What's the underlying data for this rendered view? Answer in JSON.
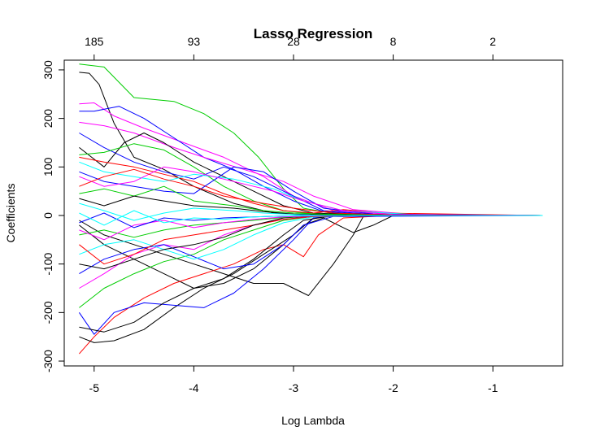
{
  "chart_data": {
    "type": "line",
    "title": "Lasso Regression",
    "xlabel": "Log Lambda",
    "ylabel": "Coefficients",
    "xlim": [
      -5.3,
      -0.3
    ],
    "ylim": [
      -310,
      320
    ],
    "x_ticks": [
      -5,
      -4,
      -3,
      -2,
      -1
    ],
    "x_tick_labels": [
      "-5",
      "-4",
      "-3",
      "-2",
      "-1"
    ],
    "y_ticks": [
      -300,
      -200,
      -100,
      0,
      100,
      200,
      300
    ],
    "y_tick_labels": [
      "-300",
      "-200",
      "-100",
      "0",
      "100",
      "200",
      "300"
    ],
    "top_axis": {
      "ticks": [
        -5,
        -4,
        -3,
        -2,
        -1
      ],
      "labels": [
        "185",
        "93",
        "28",
        "8",
        "2"
      ]
    },
    "series": [
      {
        "name": "path-green-1",
        "color": "#00cd00",
        "x": [
          -5.15,
          -4.9,
          -4.6,
          -4.2,
          -3.9,
          -3.6,
          -3.35,
          -3.1,
          -2.9,
          -2.6,
          -2.2,
          -1.5,
          -0.5
        ],
        "y": [
          312,
          306,
          243,
          235,
          210,
          170,
          120,
          55,
          15,
          4,
          2,
          1,
          0
        ]
      },
      {
        "name": "path-black-1",
        "color": "#000000",
        "x": [
          -5.15,
          -5.05,
          -4.95,
          -4.8,
          -4.6,
          -4.3,
          -4.0,
          -3.6,
          -3.2,
          -2.9,
          -2.5,
          -2.0,
          -0.5
        ],
        "y": [
          295,
          293,
          270,
          190,
          120,
          95,
          60,
          25,
          5,
          1,
          0,
          0,
          0
        ]
      },
      {
        "name": "path-magenta-1",
        "color": "#ff00ff",
        "x": [
          -5.15,
          -5.0,
          -4.8,
          -4.5,
          -4.1,
          -3.7,
          -3.3,
          -3.0,
          -2.6,
          -2.0,
          -0.5
        ],
        "y": [
          230,
          232,
          205,
          180,
          150,
          120,
          80,
          40,
          10,
          2,
          0
        ]
      },
      {
        "name": "path-blue-1",
        "color": "#0000ff",
        "x": [
          -5.15,
          -5.0,
          -4.75,
          -4.5,
          -4.2,
          -3.9,
          -3.6,
          -3.3,
          -3.0,
          -2.7,
          -2.2,
          -0.5
        ],
        "y": [
          215,
          215,
          225,
          200,
          160,
          120,
          95,
          60,
          30,
          8,
          1,
          0
        ]
      },
      {
        "name": "path-magenta-2",
        "color": "#ff00ff",
        "x": [
          -5.15,
          -4.9,
          -4.6,
          -4.2,
          -3.9,
          -3.5,
          -3.1,
          -2.8,
          -2.4,
          -1.8,
          -0.5
        ],
        "y": [
          192,
          185,
          170,
          140,
          120,
          95,
          70,
          40,
          12,
          2,
          0
        ]
      },
      {
        "name": "path-blue-2",
        "color": "#0000ff",
        "x": [
          -5.15,
          -4.9,
          -4.6,
          -4.3,
          -4.0,
          -3.7,
          -3.4,
          -3.0,
          -2.7,
          -2.2,
          -0.5
        ],
        "y": [
          170,
          140,
          110,
          90,
          75,
          100,
          80,
          40,
          10,
          2,
          0
        ]
      },
      {
        "name": "path-black-2",
        "color": "#000000",
        "x": [
          -5.15,
          -4.9,
          -4.7,
          -4.5,
          -4.3,
          -4.0,
          -3.7,
          -3.4,
          -3.1,
          -2.8,
          -2.3,
          -0.5
        ],
        "y": [
          140,
          100,
          150,
          170,
          150,
          110,
          80,
          50,
          20,
          5,
          1,
          0
        ]
      },
      {
        "name": "path-green-2",
        "color": "#00cd00",
        "x": [
          -5.15,
          -4.9,
          -4.6,
          -4.3,
          -4.0,
          -3.7,
          -3.4,
          -3.1,
          -2.8,
          -2.2,
          -0.5
        ],
        "y": [
          125,
          130,
          148,
          135,
          100,
          60,
          30,
          10,
          3,
          1,
          0
        ]
      },
      {
        "name": "path-red-1",
        "color": "#ff0000",
        "x": [
          -5.15,
          -4.9,
          -4.6,
          -4.3,
          -4.0,
          -3.7,
          -3.4,
          -3.1,
          -2.8,
          -2.5,
          -2.1,
          -0.5
        ],
        "y": [
          120,
          110,
          100,
          85,
          70,
          45,
          25,
          10,
          5,
          12,
          5,
          0
        ]
      },
      {
        "name": "path-cyan-1",
        "color": "#00ffff",
        "x": [
          -5.15,
          -4.9,
          -4.6,
          -4.3,
          -4.0,
          -3.6,
          -3.2,
          -2.9,
          -2.5,
          -1.8,
          -0.5
        ],
        "y": [
          110,
          90,
          80,
          70,
          85,
          75,
          55,
          30,
          10,
          2,
          0
        ]
      },
      {
        "name": "path-blue-3",
        "color": "#0000ff",
        "x": [
          -5.15,
          -4.9,
          -4.6,
          -4.3,
          -4.0,
          -3.6,
          -3.3,
          -3.0,
          -2.7,
          -2.2,
          -0.5
        ],
        "y": [
          90,
          70,
          60,
          50,
          45,
          100,
          90,
          50,
          15,
          3,
          0
        ]
      },
      {
        "name": "path-magenta-3",
        "color": "#ff00ff",
        "x": [
          -5.15,
          -4.9,
          -4.6,
          -4.3,
          -4.0,
          -3.6,
          -3.2,
          -2.9,
          -2.5,
          -2.0,
          -0.5
        ],
        "y": [
          80,
          60,
          70,
          100,
          90,
          70,
          50,
          30,
          10,
          2,
          0
        ]
      },
      {
        "name": "path-red-2",
        "color": "#ff0000",
        "x": [
          -5.15,
          -4.9,
          -4.6,
          -4.3,
          -4.0,
          -3.7,
          -3.3,
          -3.0,
          -2.6,
          -2.0,
          -0.5
        ],
        "y": [
          60,
          80,
          95,
          75,
          60,
          40,
          25,
          15,
          5,
          1,
          0
        ]
      },
      {
        "name": "path-green-3",
        "color": "#00cd00",
        "x": [
          -5.15,
          -4.9,
          -4.6,
          -4.3,
          -4.0,
          -3.6,
          -3.3,
          -3.0,
          -2.6,
          -2.0,
          -0.5
        ],
        "y": [
          45,
          55,
          40,
          60,
          30,
          20,
          10,
          5,
          2,
          0,
          0
        ]
      },
      {
        "name": "path-black-3",
        "color": "#000000",
        "x": [
          -5.15,
          -4.9,
          -4.6,
          -4.3,
          -4.0,
          -3.6,
          -3.3,
          -3.0,
          -2.7,
          -2.2,
          -0.5
        ],
        "y": [
          35,
          20,
          40,
          30,
          20,
          15,
          8,
          3,
          1,
          0,
          0
        ]
      },
      {
        "name": "path-cyan-2",
        "color": "#00ffff",
        "x": [
          -5.15,
          -4.9,
          -4.6,
          -4.3,
          -4.0,
          -3.6,
          -3.3,
          -3.0,
          -2.7,
          -2.2,
          -0.5
        ],
        "y": [
          25,
          10,
          -10,
          5,
          15,
          10,
          5,
          2,
          0,
          0,
          0
        ]
      },
      {
        "name": "path-black-4",
        "color": "#000000",
        "x": [
          -5.15,
          -4.9,
          -4.6,
          -4.3,
          -4.0,
          -3.7,
          -3.4,
          -3.1,
          -2.85,
          -2.6,
          -2.4,
          -2.3,
          -2.0,
          -0.5
        ],
        "y": [
          -10,
          -40,
          -60,
          -80,
          -100,
          -120,
          -140,
          -140,
          -165,
          -100,
          -40,
          -2,
          0,
          0
        ]
      },
      {
        "name": "path-black-5",
        "color": "#000000",
        "x": [
          -5.15,
          -4.9,
          -4.6,
          -4.3,
          -4.0,
          -3.7,
          -3.4,
          -3.1,
          -2.9,
          -2.7,
          -2.4,
          -2.2,
          -2.0,
          -0.5
        ],
        "y": [
          -20,
          -60,
          -90,
          -120,
          -150,
          -140,
          -110,
          -60,
          -20,
          -5,
          -35,
          -20,
          0,
          0
        ]
      },
      {
        "name": "path-red-3",
        "color": "#ff0000",
        "x": [
          -5.15,
          -5.0,
          -4.8,
          -4.5,
          -4.2,
          -3.9,
          -3.6,
          -3.3,
          -3.1,
          -2.9,
          -2.75,
          -2.5,
          -2.0,
          -0.5
        ],
        "y": [
          -285,
          -250,
          -210,
          -170,
          -140,
          -120,
          -100,
          -70,
          -60,
          -85,
          -40,
          -5,
          0,
          0
        ]
      },
      {
        "name": "path-black-6",
        "color": "#000000",
        "x": [
          -5.15,
          -5.0,
          -4.8,
          -4.5,
          -4.2,
          -3.9,
          -3.6,
          -3.3,
          -3.0,
          -2.8,
          -2.5,
          -0.5
        ],
        "y": [
          -250,
          -262,
          -258,
          -235,
          -190,
          -150,
          -120,
          -80,
          -40,
          -5,
          0,
          0
        ]
      },
      {
        "name": "path-blue-4",
        "color": "#0000ff",
        "x": [
          -5.15,
          -5.0,
          -4.8,
          -4.5,
          -4.2,
          -3.9,
          -3.6,
          -3.3,
          -3.0,
          -2.8,
          -2.5,
          -0.5
        ],
        "y": [
          -200,
          -245,
          -200,
          -180,
          -185,
          -190,
          -160,
          -110,
          -50,
          -5,
          0,
          0
        ]
      },
      {
        "name": "path-black-7",
        "color": "#000000",
        "x": [
          -5.15,
          -4.9,
          -4.6,
          -4.3,
          -4.0,
          -3.7,
          -3.4,
          -3.1,
          -2.9,
          -2.6,
          -0.5
        ],
        "y": [
          -230,
          -240,
          -220,
          -180,
          -150,
          -130,
          -90,
          -40,
          -10,
          0,
          0
        ]
      },
      {
        "name": "path-green-4",
        "color": "#00cd00",
        "x": [
          -5.15,
          -4.9,
          -4.6,
          -4.3,
          -4.0,
          -3.7,
          -3.4,
          -3.1,
          -2.8,
          -2.4,
          -0.5
        ],
        "y": [
          -190,
          -150,
          -120,
          -95,
          -80,
          -50,
          -30,
          -10,
          -2,
          0,
          0
        ]
      },
      {
        "name": "path-magenta-4",
        "color": "#ff00ff",
        "x": [
          -5.15,
          -4.9,
          -4.6,
          -4.3,
          -4.0,
          -3.7,
          -3.4,
          -3.1,
          -2.8,
          -2.4,
          -0.5
        ],
        "y": [
          -150,
          -120,
          -80,
          -60,
          -70,
          -40,
          -20,
          -8,
          -2,
          0,
          0
        ]
      },
      {
        "name": "path-blue-5",
        "color": "#0000ff",
        "x": [
          -5.15,
          -4.9,
          -4.6,
          -4.3,
          -4.0,
          -3.7,
          -3.4,
          -3.1,
          -2.9,
          -2.6,
          -0.5
        ],
        "y": [
          -120,
          -90,
          -70,
          -60,
          -85,
          -110,
          -100,
          -60,
          -20,
          -2,
          0
        ]
      },
      {
        "name": "path-cyan-3",
        "color": "#00ffff",
        "x": [
          -5.15,
          -4.9,
          -4.6,
          -4.3,
          -4.0,
          -3.7,
          -3.4,
          -3.1,
          -2.8,
          -2.4,
          -0.5
        ],
        "y": [
          -80,
          -60,
          -50,
          -70,
          -90,
          -70,
          -40,
          -15,
          -3,
          0,
          0
        ]
      },
      {
        "name": "path-red-4",
        "color": "#ff0000",
        "x": [
          -5.15,
          -4.9,
          -4.6,
          -4.3,
          -4.0,
          -3.7,
          -3.4,
          -3.1,
          -2.8,
          -2.4,
          -0.5
        ],
        "y": [
          -60,
          -100,
          -80,
          -50,
          -40,
          -30,
          -20,
          -8,
          -2,
          0,
          0
        ]
      },
      {
        "name": "path-black-8",
        "color": "#000000",
        "x": [
          -5.15,
          -4.9,
          -4.6,
          -4.3,
          -4.0,
          -3.7,
          -3.4,
          -3.1,
          -2.8,
          -2.4,
          -0.5
        ],
        "y": [
          -100,
          -110,
          -90,
          -70,
          -60,
          -45,
          -20,
          -5,
          -1,
          0,
          0
        ]
      },
      {
        "name": "path-green-5",
        "color": "#00cd00",
        "x": [
          -5.15,
          -4.9,
          -4.6,
          -4.3,
          -4.0,
          -3.7,
          -3.4,
          -3.1,
          -2.8,
          -2.4,
          -0.5
        ],
        "y": [
          -40,
          -30,
          -45,
          -30,
          -20,
          -15,
          -10,
          -4,
          -1,
          0,
          0
        ]
      },
      {
        "name": "path-magenta-5",
        "color": "#ff00ff",
        "x": [
          -5.15,
          -4.9,
          -4.6,
          -4.3,
          -4.0,
          -3.7,
          -3.4,
          -3.1,
          -2.8,
          -2.4,
          -0.5
        ],
        "y": [
          -30,
          -50,
          -20,
          -10,
          -25,
          -15,
          -8,
          -3,
          -1,
          0,
          0
        ]
      },
      {
        "name": "path-blue-6",
        "color": "#0000ff",
        "x": [
          -5.15,
          -4.9,
          -4.6,
          -4.3,
          -4.0,
          -3.7,
          -3.4,
          -3.1,
          -2.8,
          -2.4,
          -0.5
        ],
        "y": [
          -15,
          5,
          -25,
          -5,
          -10,
          -5,
          -3,
          -1,
          0,
          0,
          0
        ]
      },
      {
        "name": "path-cyan-4",
        "color": "#00ffff",
        "x": [
          -5.15,
          -4.9,
          -4.6,
          -4.3,
          -4.0,
          -3.7,
          -3.4,
          -3.1,
          -2.8,
          -2.4,
          -0.5
        ],
        "y": [
          5,
          -20,
          10,
          -15,
          -5,
          -8,
          -3,
          -1,
          0,
          0,
          0
        ]
      }
    ]
  }
}
